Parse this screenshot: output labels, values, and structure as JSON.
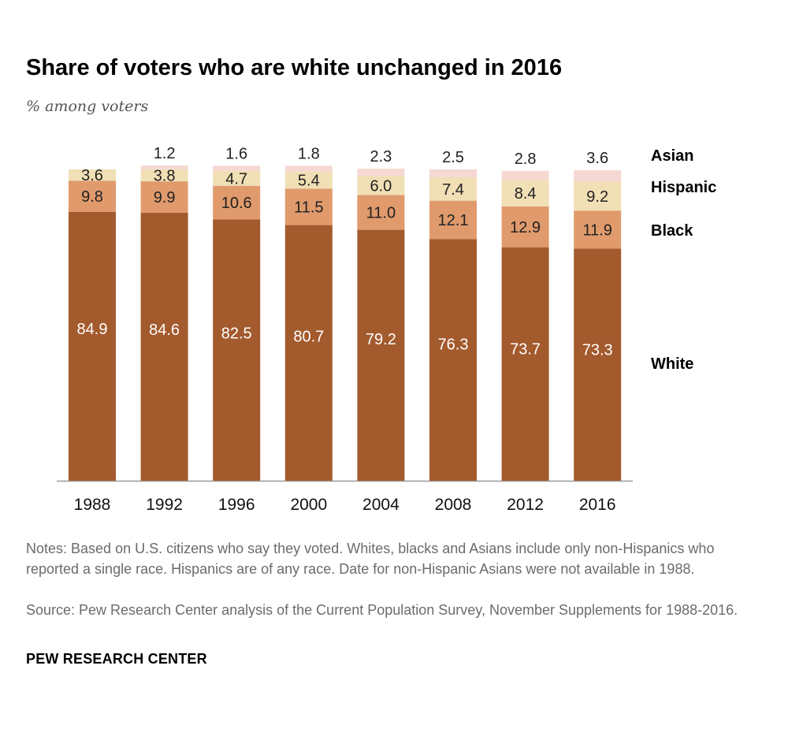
{
  "title": "Share of voters who are white unchanged in 2016",
  "subtitle": "% among voters",
  "notes": "Notes: Based on U.S. citizens who say they voted. Whites, blacks and Asians include only non-Hispanics who reported a single race. Hispanics are of any race. Date for non-Hispanic Asians were not available in 1988.",
  "source": "Source: Pew Research Center analysis of the Current Population Survey, November Supplements for 1988-2016.",
  "org": "PEW RESEARCH CENTER",
  "colors": {
    "White": "#a35a2d",
    "Black": "#e09a6c",
    "Hispanic": "#f1dfb5",
    "Asian": "#f6d8d3"
  },
  "chart_data": {
    "type": "bar",
    "stacked": true,
    "categories": [
      "1988",
      "1992",
      "1996",
      "2000",
      "2004",
      "2008",
      "2012",
      "2016"
    ],
    "series": [
      {
        "name": "White",
        "values": [
          84.9,
          84.6,
          82.5,
          80.7,
          79.2,
          76.3,
          73.7,
          73.3
        ],
        "labels": [
          "84.9",
          "84.6",
          "82.5",
          "80.7",
          "79.2",
          "76.3",
          "73.7",
          "73.3"
        ]
      },
      {
        "name": "Black",
        "values": [
          9.8,
          9.9,
          10.6,
          11.5,
          11.0,
          12.1,
          12.9,
          11.9
        ],
        "labels": [
          "9.8",
          "9.9",
          "10.6",
          "11.5",
          "11.0",
          "12.1",
          "12.9",
          "11.9"
        ]
      },
      {
        "name": "Hispanic",
        "values": [
          3.6,
          3.8,
          4.7,
          5.4,
          6.0,
          7.4,
          8.4,
          9.2
        ],
        "labels": [
          "3.6",
          "3.8",
          "4.7",
          "5.4",
          "6.0",
          "7.4",
          "8.4",
          "9.2"
        ]
      },
      {
        "name": "Asian",
        "values": [
          null,
          1.2,
          1.6,
          1.8,
          2.3,
          2.5,
          2.8,
          3.6
        ],
        "labels": [
          "",
          "1.2",
          "1.6",
          "1.8",
          "2.3",
          "2.5",
          "2.8",
          "3.6"
        ]
      }
    ],
    "ylim": [
      0,
      100
    ],
    "xlabel": "",
    "ylabel": "",
    "legend": "right, inline labels beside last bar"
  }
}
